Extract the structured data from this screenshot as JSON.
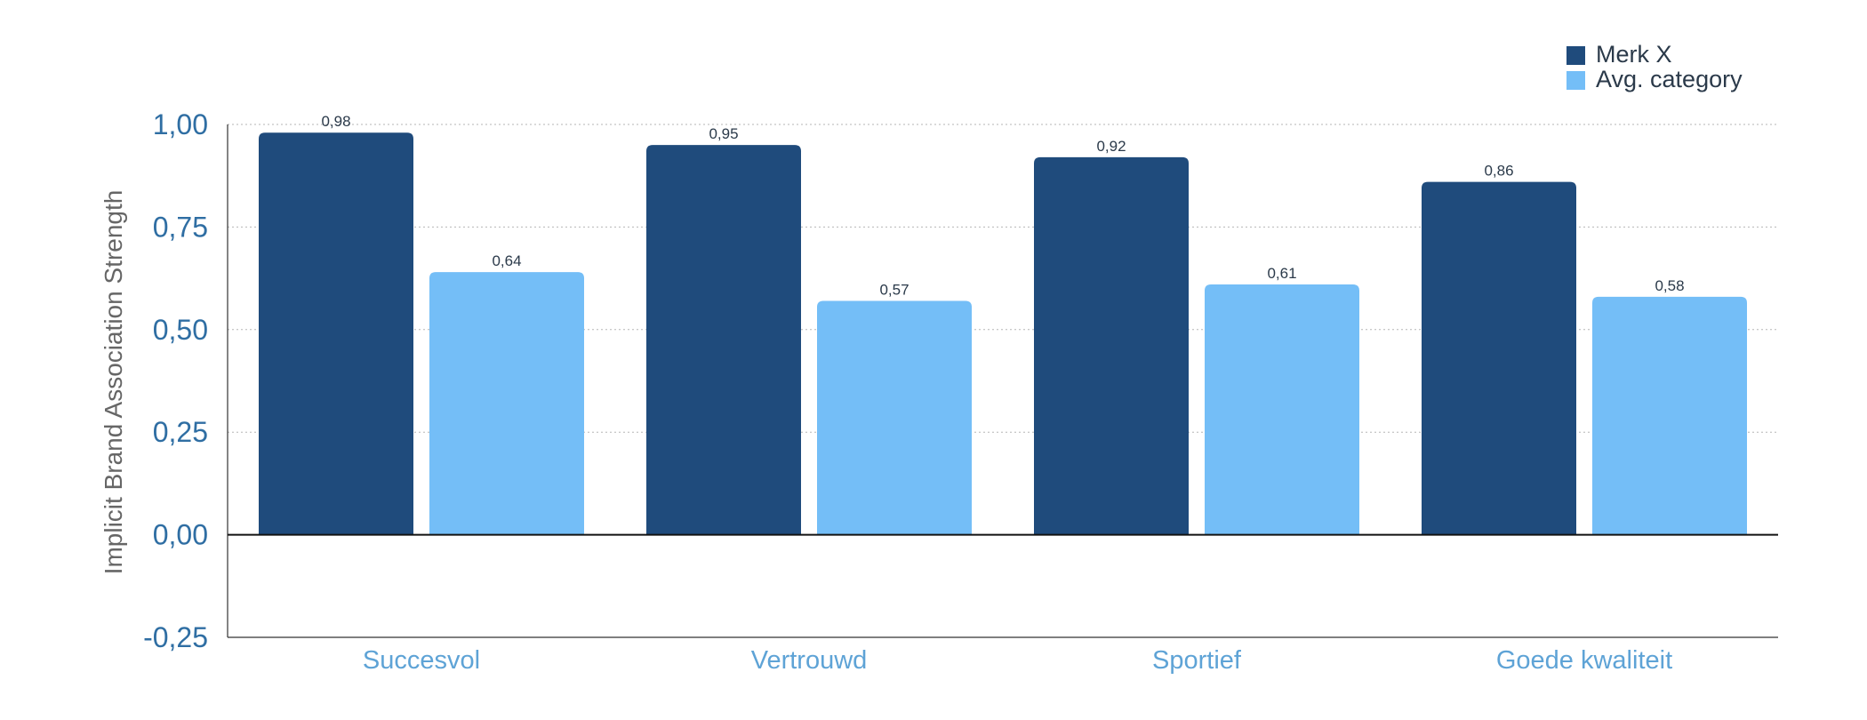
{
  "chart_data": {
    "type": "bar",
    "title": "",
    "xlabel": "",
    "ylabel": "Implicit Brand Association Strength",
    "categories": [
      "Succesvol",
      "Vertrouwd",
      "Sportief",
      "Goede kwaliteit"
    ],
    "series": [
      {
        "name": "Merk X",
        "color": "#1f4b7c",
        "values": [
          0.98,
          0.95,
          0.92,
          0.86
        ],
        "labels": [
          "0,98",
          "0,95",
          "0,92",
          "0,86"
        ]
      },
      {
        "name": "Avg. category",
        "color": "#74bef7",
        "values": [
          0.64,
          0.57,
          0.61,
          0.58
        ],
        "labels": [
          "0,64",
          "0,57",
          "0,61",
          "0,58"
        ]
      }
    ],
    "ylim": [
      -0.25,
      1.0
    ],
    "yticks": [
      1.0,
      0.75,
      0.5,
      0.25,
      0.0,
      -0.25
    ],
    "ytick_labels": [
      "1,00",
      "0,75",
      "0,50",
      "0,25",
      "0,00",
      "-0,25"
    ],
    "grid": true,
    "legend_position": "top-right"
  }
}
